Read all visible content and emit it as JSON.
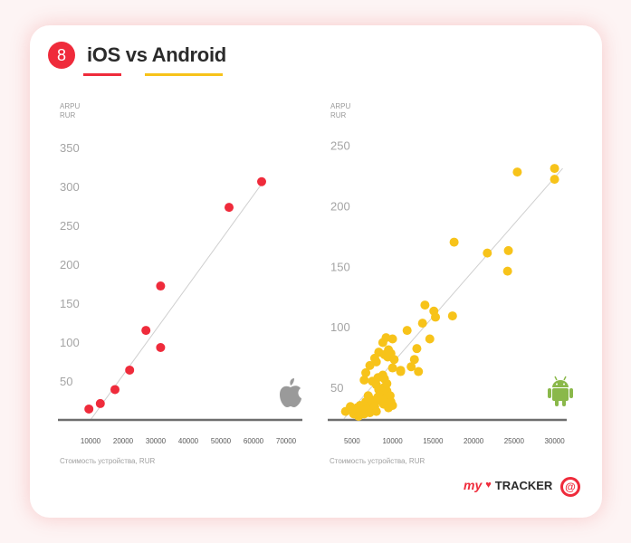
{
  "header": {
    "badge_number": "8",
    "title": "iOS vs Android",
    "ios_color": "#ef2b3b",
    "android_color": "#f7c31a"
  },
  "chart_data": [
    {
      "type": "scatter",
      "title": "",
      "ylabel_line1": "ARPU",
      "ylabel_line2": "RUR",
      "xlabel": "Стоимость устройства, RUR",
      "xticks": [
        10000,
        20000,
        30000,
        40000,
        50000,
        60000,
        70000
      ],
      "yticks": [
        50,
        100,
        150,
        200,
        250,
        300,
        350
      ],
      "xlim": [
        0,
        75000
      ],
      "ylim": [
        0,
        365
      ],
      "grid": false,
      "series": [
        {
          "color": "#ef2b3b",
          "x": [
            9500,
            13000,
            17500,
            22000,
            27000,
            31500,
            31500,
            52500,
            62500
          ],
          "y": [
            14,
            21,
            39,
            64,
            115,
            93,
            172,
            273,
            306
          ]
        }
      ],
      "trendline": {
        "x": [
          10000,
          63000
        ],
        "y": [
          0,
          306
        ]
      },
      "icon": "apple-icon"
    },
    {
      "type": "scatter",
      "title": "",
      "ylabel_line1": "ARPU",
      "ylabel_line2": "RUR",
      "xlabel": "Стоимость устройства, RUR",
      "xticks": [
        5000,
        10000,
        15000,
        20000,
        25000,
        30000
      ],
      "yticks": [
        50,
        100,
        150,
        200,
        250
      ],
      "xlim": [
        2000,
        31500
      ],
      "ylim": [
        23,
        258
      ],
      "grid": false,
      "series": [
        {
          "color": "#f7c31a",
          "x": [
            4200,
            4800,
            5200,
            5600,
            5800,
            6000,
            6200,
            6500,
            6700,
            7000,
            7200,
            7000,
            7300,
            7600,
            7800,
            8000,
            8200,
            8300,
            8500,
            8700,
            8900,
            9000,
            9200,
            9300,
            9500,
            9700,
            9800,
            10000,
            7500,
            8000,
            8200,
            8800,
            9000,
            9300,
            10000,
            11000,
            11800,
            12300,
            12700,
            13000,
            13200,
            13700,
            14000,
            14600,
            15100,
            15300,
            17400,
            17600,
            8000,
            9000,
            9400,
            8800,
            9200,
            9500,
            9800,
            10200,
            10000,
            6500,
            6700,
            7200,
            7800,
            8300,
            11000,
            21700,
            24200,
            24300,
            25400,
            30000,
            30000
          ],
          "y": [
            30,
            34,
            28,
            33,
            26,
            35,
            31,
            28,
            38,
            33,
            29,
            43,
            40,
            37,
            34,
            30,
            42,
            48,
            39,
            44,
            36,
            50,
            41,
            47,
            33,
            43,
            38,
            35,
            55,
            52,
            58,
            60,
            57,
            53,
            66,
            63,
            97,
            67,
            73,
            82,
            63,
            103,
            118,
            90,
            113,
            108,
            109,
            170,
            71,
            77,
            75,
            87,
            91,
            81,
            78,
            73,
            90,
            56,
            62,
            68,
            74,
            79,
            64,
            161,
            146,
            163,
            228,
            222,
            231
          ]
        }
      ],
      "trendline": {
        "x": [
          4000,
          31000
        ],
        "y": [
          24,
          231
        ]
      },
      "icon": "android-icon"
    }
  ],
  "footer": {
    "brand_my": "my",
    "brand_name": "TRACKER",
    "mail_symbol": "@"
  }
}
